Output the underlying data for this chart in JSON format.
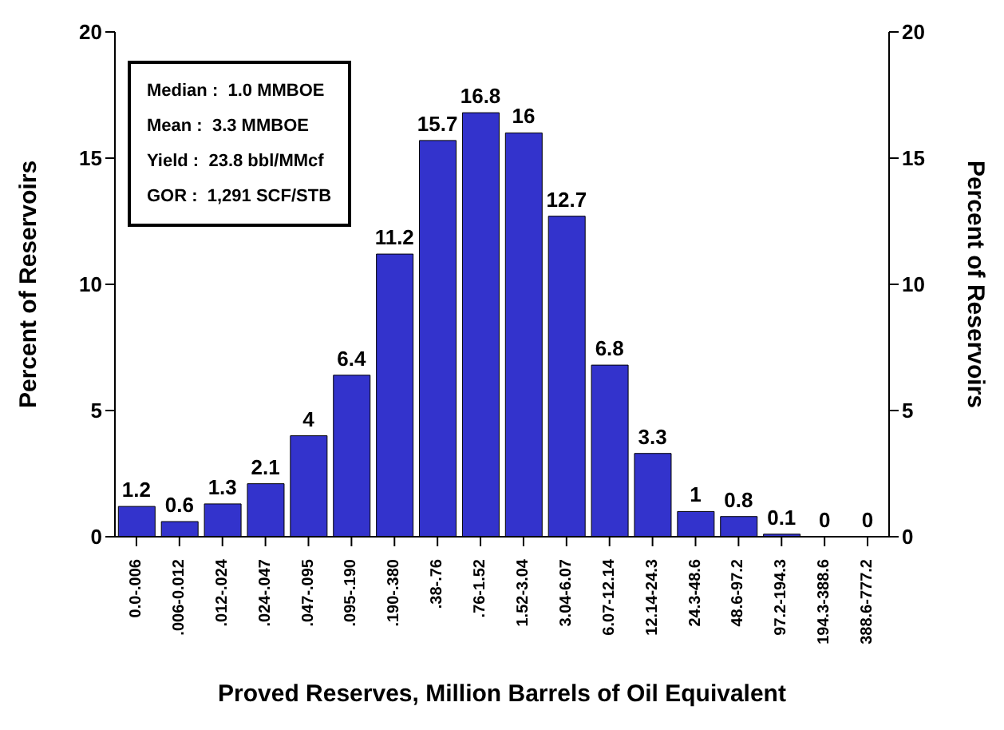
{
  "chart_data": {
    "type": "bar",
    "xlabel": "Proved Reserves, Million Barrels of Oil Equivalent",
    "ylabel": "Percent of Reservoirs",
    "y2label": "Percent of Reservoirs",
    "categories": [
      "0.0-.006",
      ".006-0.012",
      ".012-.024",
      ".024-.047",
      ".047-.095",
      ".095-.190",
      ".190-.380",
      ".38-.76",
      ".76-1.52",
      "1.52-3.04",
      "3.04-6.07",
      "6.07-12.14",
      "12.14-24.3",
      "24.3-48.6",
      "48.6-97.2",
      "97.2-194.3",
      "194.3-388.6",
      "388.6-777.2"
    ],
    "values": [
      1.2,
      0.6,
      1.3,
      2.1,
      4,
      6.4,
      11.2,
      15.7,
      16.8,
      16,
      12.7,
      6.8,
      3.3,
      1,
      0.8,
      0.1,
      0,
      0
    ],
    "color": "#3333cc",
    "ylim": [
      0,
      20
    ],
    "yticks": [
      0,
      5,
      10,
      15,
      20
    ],
    "y2lim": [
      0,
      20
    ],
    "y2ticks": [
      0,
      5,
      10,
      15,
      20
    ],
    "data_labels": true,
    "grid": false,
    "annotations": [
      "Median :  1.0 MMBOE",
      "Mean :  3.3 MMBOE",
      "Yield :  23.8 bbl/MMcf",
      "GOR :  1,291 SCF/STB"
    ]
  }
}
